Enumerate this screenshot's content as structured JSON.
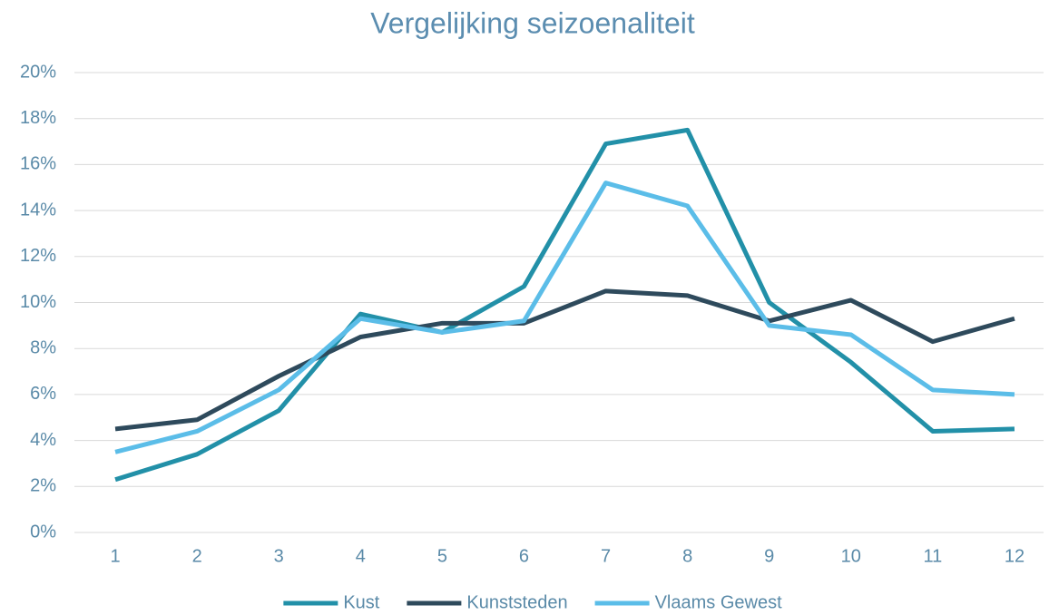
{
  "chart_data": {
    "type": "line",
    "title": "Vergelijking seizoenaliteit",
    "categories": [
      1,
      2,
      3,
      4,
      5,
      6,
      7,
      8,
      9,
      10,
      11,
      12
    ],
    "series": [
      {
        "name": "Kust",
        "color": "#2290a8",
        "values": [
          2.3,
          3.4,
          5.3,
          9.5,
          8.7,
          10.7,
          16.9,
          17.5,
          10.0,
          7.4,
          4.4,
          4.5
        ]
      },
      {
        "name": "Kunststeden",
        "color": "#2e4a5c",
        "values": [
          4.5,
          4.9,
          6.8,
          8.5,
          9.1,
          9.1,
          10.5,
          10.3,
          9.2,
          10.1,
          8.3,
          9.3
        ]
      },
      {
        "name": "Vlaams Gewest",
        "color": "#5bbde8",
        "values": [
          3.5,
          4.4,
          6.2,
          9.3,
          8.7,
          9.2,
          15.2,
          14.2,
          9.0,
          8.6,
          6.2,
          6.0
        ]
      }
    ],
    "ylim": [
      0,
      20
    ],
    "yticks": [
      {
        "value": 0,
        "label": "0%"
      },
      {
        "value": 2,
        "label": "2%"
      },
      {
        "value": 4,
        "label": "4%"
      },
      {
        "value": 6,
        "label": "6%"
      },
      {
        "value": 8,
        "label": "8%"
      },
      {
        "value": 10,
        "label": "10%"
      },
      {
        "value": 12,
        "label": "12%"
      },
      {
        "value": 14,
        "label": "14%"
      },
      {
        "value": 16,
        "label": "16%"
      },
      {
        "value": 18,
        "label": "18%"
      },
      {
        "value": 20,
        "label": "20%"
      }
    ],
    "grid": true,
    "legend": "bottom"
  }
}
